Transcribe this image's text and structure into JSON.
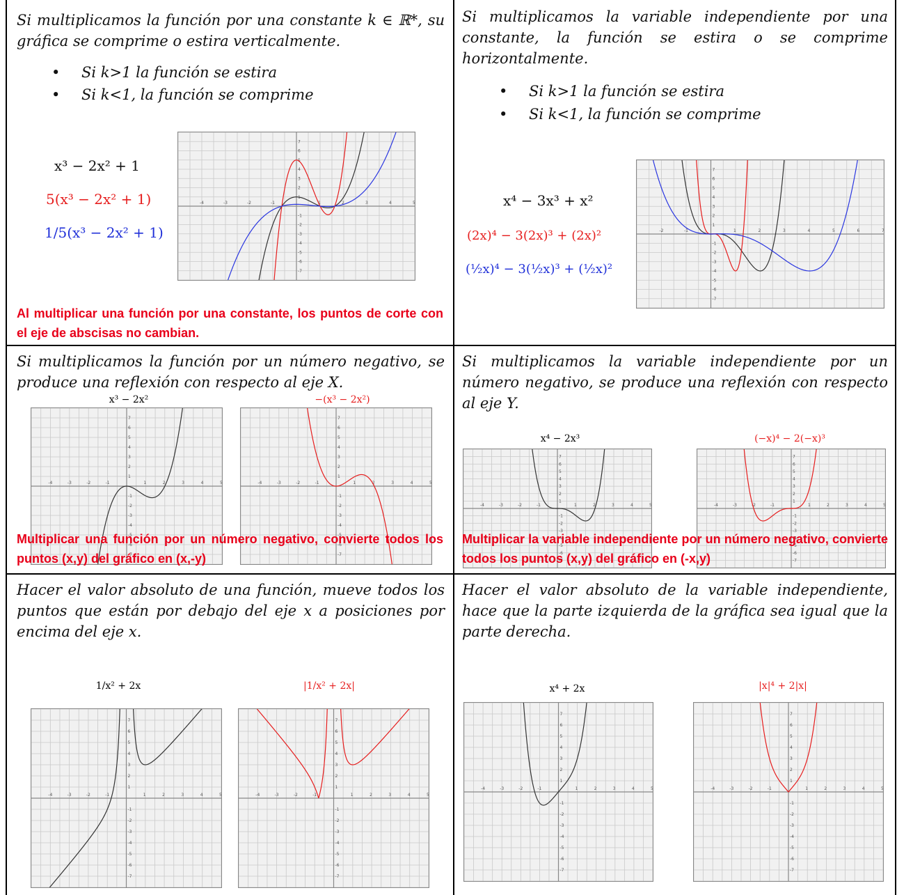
{
  "cells": [
    {
      "id": "vertical-scaling",
      "text": "Si multiplicamos la función por una constante k ∈ ℝ*, su gráfica se comprime o estira verticalmente.",
      "bullets": [
        "Si k>1 la función se estira",
        "Si k<1, la función se comprime"
      ],
      "formulas": [
        "x³ − 2x² + 1",
        "5(x³ − 2x² + 1)",
        "1/5(x³ − 2x² + 1)"
      ],
      "note": "Al multiplicar una función por una constante, los puntos de corte con el eje de abscisas no cambian."
    },
    {
      "id": "horizontal-scaling",
      "text": "Si multiplicamos la variable independiente por una constante, la función se estira o se comprime horizontalmente.",
      "bullets": [
        "Si k>1 la función se estira",
        "Si k<1, la función se comprime"
      ],
      "formulas": [
        "x⁴ − 3x³ + x²",
        "(2x)⁴ − 3(2x)³ + (2x)²",
        "(½x)⁴ − 3(½x)³ + (½x)²"
      ]
    },
    {
      "id": "reflection-x",
      "text": "Si multiplicamos la función por un número negativo, se produce una reflexión con respecto al eje X.",
      "titles": [
        "x³ − 2x²",
        "−(x³ − 2x²)"
      ],
      "note": "Multiplicar una función por un número negativo, convierte todos los puntos (x,y) del gráfico en (x,-y)"
    },
    {
      "id": "reflection-y",
      "text": "Si multiplicamos la variable independiente por un número negativo, se produce una reflexión con respecto al eje Y.",
      "titles": [
        "x⁴ − 2x³",
        "(−x)⁴ − 2(−x)³"
      ],
      "note": "Multiplicar la variable independiente por un número negativo, convierte todos los puntos (x,y) del gráfico en (-x,y)"
    },
    {
      "id": "abs-function",
      "text": "Hacer el valor absoluto de una función, mueve todos los puntos que están por debajo del eje x a posiciones por encima del eje x.",
      "titles": [
        "1/x² + 2x",
        "|1/x² + 2x|"
      ]
    },
    {
      "id": "abs-variable",
      "text": "Hacer el valor absoluto de la variable independiente, hace que la parte izquierda de la gráfica sea igual que la parte derecha.",
      "titles": [
        "x⁴ + 2x",
        "|x|⁴ + 2|x|"
      ]
    }
  ],
  "colors": {
    "note": "#e8001a",
    "black_curve": "#333333",
    "red_curve": "#e61d1d",
    "blue_curve": "#2a36e0"
  },
  "graphs": [
    {
      "id": "g1",
      "xlim": [
        -5,
        5
      ],
      "ylim": [
        -8,
        8
      ],
      "curves": [
        {
          "fn": "f1",
          "color": "black_curve"
        },
        {
          "fn": "f1x5",
          "color": "red_curve"
        },
        {
          "fn": "f1d5",
          "color": "blue_curve"
        }
      ]
    },
    {
      "id": "g2",
      "xlim": [
        -3,
        7
      ],
      "ylim": [
        -8,
        8
      ],
      "curves": [
        {
          "fn": "f2",
          "color": "black_curve"
        },
        {
          "fn": "f2x2",
          "color": "red_curve"
        },
        {
          "fn": "f2half",
          "color": "blue_curve"
        }
      ]
    },
    {
      "id": "g3a",
      "xlim": [
        -5,
        5
      ],
      "ylim": [
        -8,
        8
      ],
      "curves": [
        {
          "fn": "f3",
          "color": "black_curve"
        }
      ]
    },
    {
      "id": "g3b",
      "xlim": [
        -5,
        5
      ],
      "ylim": [
        -8,
        8
      ],
      "curves": [
        {
          "fn": "f3neg",
          "color": "red_curve"
        }
      ]
    },
    {
      "id": "g4a",
      "xlim": [
        -5,
        5
      ],
      "ylim": [
        -8,
        8
      ],
      "curves": [
        {
          "fn": "f4",
          "color": "black_curve"
        }
      ]
    },
    {
      "id": "g4b",
      "xlim": [
        -5,
        5
      ],
      "ylim": [
        -8,
        8
      ],
      "curves": [
        {
          "fn": "f4neg",
          "color": "red_curve"
        }
      ]
    },
    {
      "id": "g5a",
      "xlim": [
        -5,
        5
      ],
      "ylim": [
        -8,
        8
      ],
      "curves": [
        {
          "fn": "f5",
          "color": "black_curve"
        }
      ]
    },
    {
      "id": "g5b",
      "xlim": [
        -5,
        5
      ],
      "ylim": [
        -8,
        8
      ],
      "curves": [
        {
          "fn": "f5abs",
          "color": "red_curve"
        }
      ]
    },
    {
      "id": "g6a",
      "xlim": [
        -5,
        5
      ],
      "ylim": [
        -8,
        8
      ],
      "curves": [
        {
          "fn": "f6",
          "color": "black_curve"
        }
      ]
    },
    {
      "id": "g6b",
      "xlim": [
        -5,
        5
      ],
      "ylim": [
        -8,
        8
      ],
      "curves": [
        {
          "fn": "f6abs",
          "color": "red_curve"
        }
      ]
    }
  ]
}
